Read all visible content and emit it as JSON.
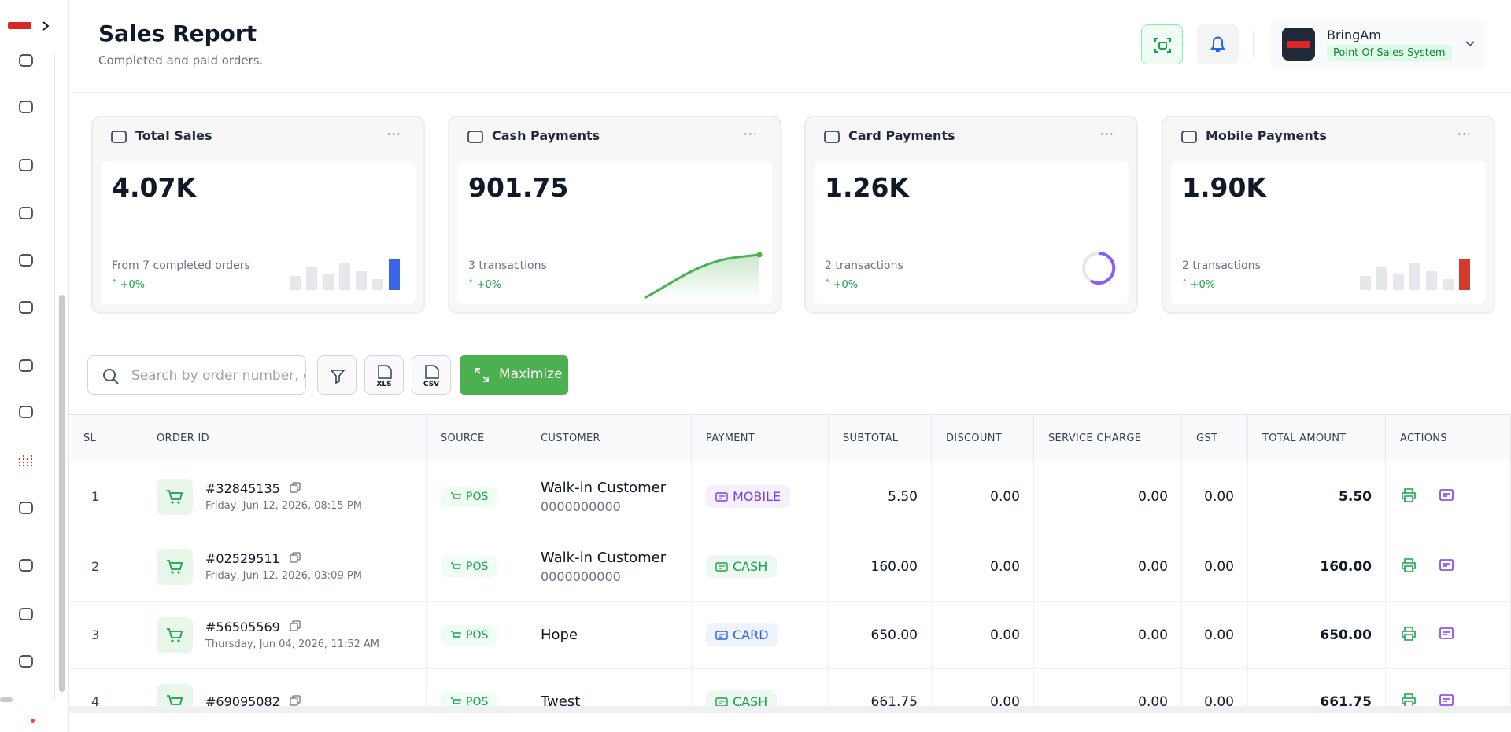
{
  "header": {
    "title": "Sales Report",
    "subtitle": "Completed and paid orders."
  },
  "user": {
    "name": "BringAm",
    "role": "Point Of Sales System"
  },
  "cards": [
    {
      "title": "Total Sales",
      "value": "4.07K",
      "note": "From 7 completed orders",
      "change": "+0%"
    },
    {
      "title": "Cash Payments",
      "value": "901.75",
      "note": "3 transactions",
      "change": "+0%"
    },
    {
      "title": "Card Payments",
      "value": "1.26K",
      "note": "2 transactions",
      "change": "+0%"
    },
    {
      "title": "Mobile Payments",
      "value": "1.90K",
      "note": "2 transactions",
      "change": "+0%"
    }
  ],
  "toolbar": {
    "search_placeholder": "Search by order number, customer...",
    "xls": "XLS",
    "csv": "CSV",
    "maximize": "Maximize"
  },
  "table": {
    "columns": [
      "SL",
      "ORDER ID",
      "SOURCE",
      "CUSTOMER",
      "PAYMENT",
      "SUBTOTAL",
      "DISCOUNT",
      "SERVICE CHARGE",
      "GST",
      "TOTAL AMOUNT",
      "ACTIONS"
    ],
    "rows": [
      {
        "sl": "1",
        "order_id": "#32845135",
        "date": "Friday, Jun 12, 2026, 08:15 PM",
        "source": "POS",
        "customer": "Walk-in Customer",
        "phone": "0000000000",
        "payment": "MOBILE",
        "payment_color": "#7c3aed",
        "subtotal": "5.50",
        "discount": "0.00",
        "service_charge": "0.00",
        "gst": "0.00",
        "total": "5.50"
      },
      {
        "sl": "2",
        "order_id": "#02529511",
        "date": "Friday, Jun 12, 2026, 03:09 PM",
        "source": "POS",
        "customer": "Walk-in Customer",
        "phone": "0000000000",
        "payment": "CASH",
        "payment_color": "#16a34a",
        "subtotal": "160.00",
        "discount": "0.00",
        "service_charge": "0.00",
        "gst": "0.00",
        "total": "160.00"
      },
      {
        "sl": "3",
        "order_id": "#56505569",
        "date": "Thursday, Jun 04, 2026, 11:52 AM",
        "source": "POS",
        "customer": "Hope",
        "payment": "CARD",
        "payment_color": "#2563eb",
        "subtotal": "650.00",
        "discount": "0.00",
        "service_charge": "0.00",
        "gst": "0.00",
        "total": "650.00"
      },
      {
        "sl": "4",
        "order_id": "#69095082",
        "source": "POS",
        "customer": "Twest",
        "payment": "CASH",
        "payment_color": "#16a34a",
        "subtotal": "661.75",
        "discount": "0.00",
        "service_charge": "0.00",
        "gst": "0.00",
        "total": "661.75"
      }
    ]
  }
}
